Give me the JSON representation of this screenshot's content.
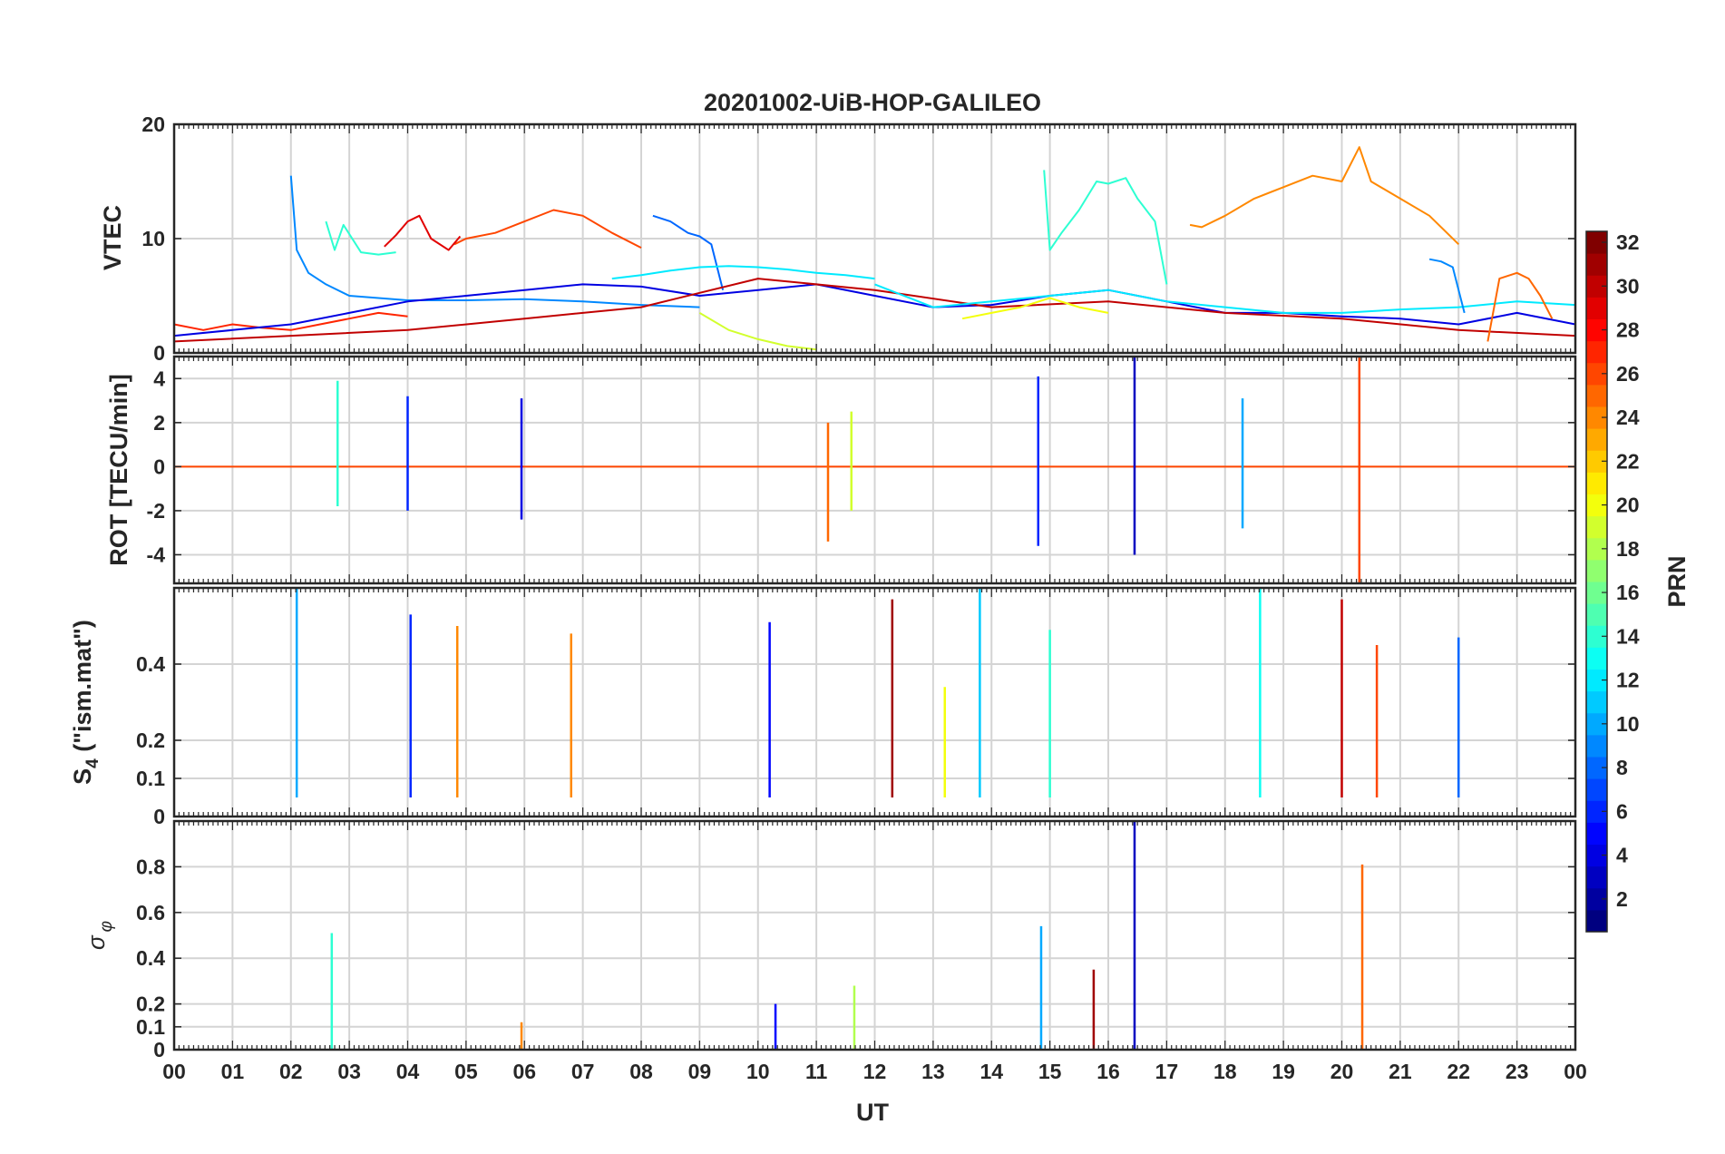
{
  "chart_data": {
    "type": "line",
    "title": "20201002-UiB-HOP-GALILEO",
    "xlabel": "UT",
    "xlim": [
      0,
      24
    ],
    "x_tick_labels": [
      "00",
      "01",
      "02",
      "03",
      "04",
      "05",
      "06",
      "07",
      "08",
      "09",
      "10",
      "11",
      "12",
      "13",
      "14",
      "15",
      "16",
      "17",
      "18",
      "19",
      "20",
      "21",
      "22",
      "23",
      "00"
    ],
    "grid": true,
    "colormap": "jet",
    "colorbar": {
      "label": "PRN",
      "range": [
        1,
        32
      ],
      "tick_values": [
        2,
        4,
        6,
        8,
        10,
        12,
        14,
        16,
        18,
        20,
        22,
        24,
        26,
        28,
        30,
        32
      ],
      "tick_labels": [
        "2",
        "4",
        "6",
        "8",
        "10",
        "12",
        "14",
        "16",
        "18",
        "20",
        "22",
        "24",
        "26",
        "28",
        "30",
        "32"
      ],
      "placement": "right"
    },
    "panels": [
      {
        "ylabel": "VTEC",
        "ylim": [
          0,
          20
        ],
        "y_ticks": [
          0,
          10,
          20
        ],
        "y_tick_labels": [
          "0",
          "10",
          "20"
        ],
        "series": [
          {
            "prn": 9,
            "x": [
              2.0,
              2.1,
              2.3,
              2.6,
              3.0,
              3.5,
              4.0,
              5.0,
              6.0,
              7.0,
              8.0,
              9.0
            ],
            "y": [
              15.5,
              9.0,
              7.0,
              6.0,
              5.0,
              4.8,
              4.6,
              4.6,
              4.7,
              4.5,
              4.2,
              4.0
            ]
          },
          {
            "prn": 14,
            "x": [
              2.6,
              2.75,
              2.9,
              3.2,
              3.5,
              3.8
            ],
            "y": [
              11.5,
              9.0,
              11.2,
              8.8,
              8.6,
              8.8
            ]
          },
          {
            "prn": 26,
            "x": [
              4.8,
              5.0,
              5.5,
              6.0,
              6.5,
              7.0,
              7.5,
              8.0
            ],
            "y": [
              9.5,
              10.0,
              10.5,
              11.5,
              12.5,
              12.0,
              10.5,
              9.2
            ]
          },
          {
            "prn": 29,
            "x": [
              3.6,
              3.8,
              4.0,
              4.2,
              4.4,
              4.7,
              4.9
            ],
            "y": [
              9.3,
              10.3,
              11.5,
              12.0,
              10.0,
              9.0,
              10.2
            ]
          },
          {
            "prn": 8,
            "x": [
              8.2,
              8.5,
              8.8,
              9.0,
              9.2,
              9.4
            ],
            "y": [
              12.0,
              11.5,
              10.5,
              10.2,
              9.5,
              5.5
            ]
          },
          {
            "prn": 12,
            "x": [
              7.5,
              8.0,
              8.5,
              9.0,
              9.5,
              10.0,
              10.5,
              11.0,
              11.5,
              12.0
            ],
            "y": [
              6.5,
              6.8,
              7.2,
              7.5,
              7.6,
              7.5,
              7.3,
              7.0,
              6.8,
              6.5
            ]
          },
          {
            "prn": 14,
            "x": [
              14.9,
              15.0,
              15.2,
              15.5,
              15.8,
              16.0,
              16.3,
              16.5,
              16.8,
              17.0
            ],
            "y": [
              16.0,
              9.0,
              10.5,
              12.5,
              15.0,
              14.8,
              15.3,
              13.5,
              11.5,
              6.0
            ]
          },
          {
            "prn": 24,
            "x": [
              17.4,
              17.6,
              18.0,
              18.5,
              19.0,
              19.5,
              20.0,
              20.3,
              20.5,
              21.0,
              21.5,
              22.0
            ],
            "y": [
              11.2,
              11.0,
              12.0,
              13.5,
              14.5,
              15.5,
              15.0,
              18.0,
              15.0,
              13.5,
              12.0,
              9.5
            ]
          },
          {
            "prn": 27,
            "x": [
              0.0,
              0.5,
              1.0,
              1.5,
              2.0,
              2.5,
              3.0,
              3.5,
              4.0
            ],
            "y": [
              2.5,
              2.0,
              2.5,
              2.2,
              2.0,
              2.5,
              3.0,
              3.5,
              3.2
            ]
          },
          {
            "prn": 4,
            "x": [
              0.0,
              1.0,
              2.0,
              3.0,
              4.0,
              5.0,
              6.0,
              7.0,
              8.0,
              9.0,
              10.0,
              11.0,
              12.0,
              13.0,
              14.0,
              15.0,
              16.0,
              17.0,
              18.0,
              19.0,
              20.0,
              21.0,
              22.0,
              23.0,
              24.0
            ],
            "y": [
              1.5,
              2.0,
              2.5,
              3.5,
              4.5,
              5.0,
              5.5,
              6.0,
              5.8,
              5.0,
              5.5,
              6.0,
              5.0,
              4.0,
              4.2,
              5.0,
              5.5,
              4.5,
              3.5,
              3.5,
              3.2,
              3.0,
              2.5,
              3.5,
              2.5
            ]
          },
          {
            "prn": 30,
            "x": [
              0.0,
              2.0,
              4.0,
              6.0,
              8.0,
              10.0,
              12.0,
              14.0,
              16.0,
              18.0,
              20.0,
              22.0,
              24.0
            ],
            "y": [
              1.0,
              1.5,
              2.0,
              3.0,
              4.0,
              6.5,
              5.5,
              4.0,
              4.5,
              3.5,
              3.0,
              2.0,
              1.5
            ]
          },
          {
            "prn": 12,
            "x": [
              12.0,
              13.0,
              14.0,
              15.0,
              16.0,
              17.0,
              18.0,
              19.0,
              20.0,
              21.0,
              22.0,
              23.0,
              24.0
            ],
            "y": [
              6.0,
              4.0,
              4.5,
              5.0,
              5.5,
              4.5,
              4.0,
              3.5,
              3.5,
              3.8,
              4.0,
              4.5,
              4.2
            ]
          },
          {
            "prn": 25,
            "x": [
              22.5,
              22.7,
              23.0,
              23.2,
              23.4,
              23.6
            ],
            "y": [
              1.0,
              6.5,
              7.0,
              6.5,
              5.0,
              3.0
            ]
          },
          {
            "prn": 9,
            "x": [
              21.5,
              21.7,
              21.9,
              22.1
            ],
            "y": [
              8.2,
              8.0,
              7.5,
              3.5
            ]
          },
          {
            "prn": 19,
            "x": [
              9.0,
              9.5,
              10.0,
              10.5,
              11.0
            ],
            "y": [
              3.5,
              2.0,
              1.2,
              0.6,
              0.3
            ]
          },
          {
            "prn": 20,
            "x": [
              13.5,
              14.0,
              14.5,
              15.0,
              15.5,
              16.0
            ],
            "y": [
              3.0,
              3.5,
              4.0,
              4.8,
              4.0,
              3.5
            ]
          }
        ]
      },
      {
        "ylabel": "ROT [TECU/min]",
        "ylim": [
          -5.3,
          5.0
        ],
        "y_ticks": [
          -4,
          -2,
          0,
          2,
          4
        ],
        "y_tick_labels": [
          "-4",
          "-2",
          "0",
          "2",
          "4"
        ],
        "bursts": [
          {
            "prn": 14,
            "x": 2.8,
            "min": -1.8,
            "max": 3.9
          },
          {
            "prn": 6,
            "x": 4.0,
            "min": -2.0,
            "max": 3.2
          },
          {
            "prn": 4,
            "x": 5.95,
            "min": -2.4,
            "max": 3.1
          },
          {
            "prn": 25,
            "x": 11.2,
            "min": -3.4,
            "max": 2.0
          },
          {
            "prn": 19,
            "x": 11.6,
            "min": -2.0,
            "max": 2.5
          },
          {
            "prn": 6,
            "x": 14.8,
            "min": -3.6,
            "max": 4.1
          },
          {
            "prn": 3,
            "x": 16.45,
            "min": -4.0,
            "max": 5.0
          },
          {
            "prn": 10,
            "x": 18.3,
            "min": -2.8,
            "max": 3.1
          },
          {
            "prn": 26,
            "x": 20.3,
            "min": -5.3,
            "max": 5.0
          }
        ]
      },
      {
        "ylabel": "S4 (\"ism.mat\")",
        "ylabel_main": "S",
        "ylabel_sub": "4",
        "ylabel_rest": " (\"ism.mat\")",
        "ylim": [
          0,
          0.6
        ],
        "y_ticks": [
          0,
          0.1,
          0.2,
          0.4
        ],
        "y_tick_labels": [
          "0",
          "0.1",
          "0.2",
          "0.4"
        ],
        "bursts": [
          {
            "prn": 10,
            "x": 2.1,
            "min": 0.05,
            "max": 0.6
          },
          {
            "prn": 6,
            "x": 4.05,
            "min": 0.05,
            "max": 0.53
          },
          {
            "prn": 24,
            "x": 4.85,
            "min": 0.05,
            "max": 0.5
          },
          {
            "prn": 24,
            "x": 6.8,
            "min": 0.05,
            "max": 0.48
          },
          {
            "prn": 5,
            "x": 10.2,
            "min": 0.05,
            "max": 0.51
          },
          {
            "prn": 31,
            "x": 12.3,
            "min": 0.05,
            "max": 0.57
          },
          {
            "prn": 20,
            "x": 13.2,
            "min": 0.05,
            "max": 0.34
          },
          {
            "prn": 11,
            "x": 13.8,
            "min": 0.05,
            "max": 0.6
          },
          {
            "prn": 14,
            "x": 15.0,
            "min": 0.05,
            "max": 0.49
          },
          {
            "prn": 13,
            "x": 18.6,
            "min": 0.05,
            "max": 0.6
          },
          {
            "prn": 30,
            "x": 20.0,
            "min": 0.05,
            "max": 0.57
          },
          {
            "prn": 26,
            "x": 20.6,
            "min": 0.05,
            "max": 0.45
          },
          {
            "prn": 8,
            "x": 22.0,
            "min": 0.05,
            "max": 0.47
          }
        ]
      },
      {
        "ylabel": "σ φ",
        "ylabel_main": "σ",
        "ylabel_sub": "φ",
        "ylim": [
          0,
          1.0
        ],
        "y_ticks": [
          0,
          0.1,
          0.2,
          0.4,
          0.6,
          0.8
        ],
        "y_tick_labels": [
          "0",
          "0.1",
          "0.2",
          "0.4",
          "0.6",
          "0.8"
        ],
        "bursts": [
          {
            "prn": 14,
            "x": 2.7,
            "min": 0.0,
            "max": 0.51
          },
          {
            "prn": 24,
            "x": 5.95,
            "min": 0.0,
            "max": 0.12
          },
          {
            "prn": 5,
            "x": 10.3,
            "min": 0.0,
            "max": 0.2
          },
          {
            "prn": 18,
            "x": 11.65,
            "min": 0.0,
            "max": 0.28
          },
          {
            "prn": 10,
            "x": 14.85,
            "min": 0.0,
            "max": 0.54
          },
          {
            "prn": 31,
            "x": 15.75,
            "min": 0.0,
            "max": 0.35
          },
          {
            "prn": 3,
            "x": 16.45,
            "min": 0.0,
            "max": 1.0
          },
          {
            "prn": 25,
            "x": 20.35,
            "min": 0.0,
            "max": 0.81
          }
        ]
      }
    ]
  }
}
